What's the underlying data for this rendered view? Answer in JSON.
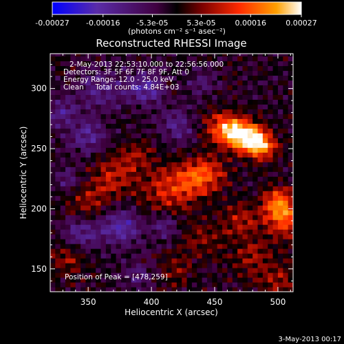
{
  "chart_data": {
    "type": "heatmap",
    "title": "Reconstructed RHESSI Image",
    "xlabel": "Heliocentric X (arcsec)",
    "ylabel": "Heliocentric Y (arcsec)",
    "xlim": [
      320,
      512
    ],
    "ylim": [
      131,
      329
    ],
    "x_ticks": [
      350,
      400,
      450,
      500
    ],
    "y_ticks": [
      150,
      200,
      250,
      300
    ],
    "colorbar": {
      "label": "(photons cm⁻² s⁻¹ asec⁻²)",
      "ticks": [
        "-0.00027",
        "-0.00016",
        "-5.3e-05",
        "5.3e-05",
        "0.00016",
        "0.00027"
      ],
      "tick_values": [
        -0.00027,
        -0.00016,
        -5.3e-05,
        5.3e-05,
        0.00016,
        0.00027
      ],
      "range": [
        -0.00027,
        0.00027
      ]
    },
    "annotations": [
      "2-May-2013 22:53:10.000 to 22:56:56.000",
      "Detectors: 3F 5F 6F 7F 8F 9F, Att 0",
      "Energy Range: 12.0 - 25.0 keV",
      "Clean     Total counts: 4.84E+03"
    ],
    "peak_label": "Position of Peak = [478,259]",
    "peak": {
      "x": 478,
      "y": 259
    },
    "grid": false,
    "colormap": [
      "#0000ff",
      "#5a2ca8",
      "#400040",
      "#000000",
      "#7a0000",
      "#ff2a00",
      "#ffa000",
      "#ffffff"
    ]
  },
  "footer": {
    "timestamp": "3-May-2013 00:17"
  }
}
